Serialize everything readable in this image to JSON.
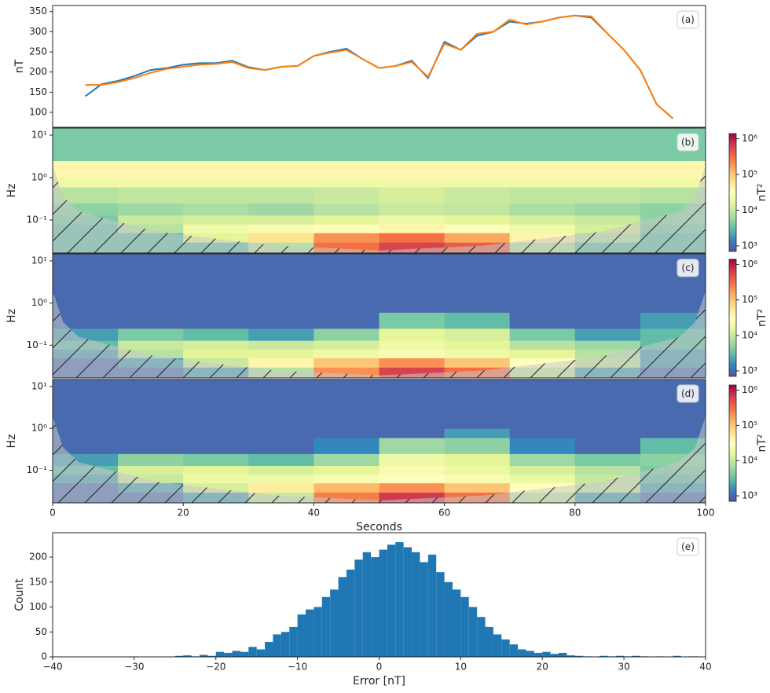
{
  "chart_data": [
    {
      "type": "line",
      "label": "(a)",
      "ylabel": "nT",
      "xlim": [
        0,
        100
      ],
      "ylim": [
        63,
        365
      ],
      "yticks": [
        100,
        150,
        200,
        250,
        300,
        350
      ],
      "x": [
        5,
        7.5,
        10,
        12.5,
        15,
        17.5,
        20,
        22.5,
        25,
        27.5,
        30,
        32.5,
        35,
        37.5,
        40,
        42.5,
        45,
        47.5,
        50,
        52.5,
        55,
        57.5,
        60,
        62.5,
        65,
        67.5,
        70,
        72.5,
        75,
        77.5,
        80,
        82.5,
        85,
        87.5,
        90,
        92.5,
        95
      ],
      "series": [
        {
          "color": "#1f77b4",
          "values": [
            140,
            170,
            178,
            190,
            205,
            210,
            218,
            222,
            222,
            228,
            212,
            205,
            213,
            215,
            240,
            250,
            258,
            232,
            210,
            215,
            228,
            185,
            275,
            255,
            290,
            300,
            325,
            320,
            325,
            335,
            340,
            335,
            295,
            255,
            205,
            120,
            85
          ]
        },
        {
          "color": "#ff7f0e",
          "values": [
            168,
            168,
            175,
            185,
            198,
            208,
            213,
            218,
            220,
            225,
            210,
            205,
            213,
            215,
            240,
            248,
            255,
            232,
            210,
            215,
            225,
            188,
            270,
            255,
            295,
            300,
            330,
            318,
            325,
            335,
            340,
            338,
            295,
            255,
            205,
            120,
            85
          ]
        }
      ]
    },
    {
      "type": "heatmap",
      "label": "(b)",
      "ylabel": "Hz",
      "clabel": "nT²",
      "yscale": "log",
      "xlim": [
        0,
        100
      ],
      "ylim": [
        0.0167,
        14.7
      ],
      "yticks": [
        {
          "value": 0.1,
          "label": "10⁻¹"
        },
        {
          "value": 1,
          "label": "10⁰"
        },
        {
          "value": 10,
          "label": "10¹"
        }
      ],
      "clim": [
        700,
        1400000
      ],
      "cticks": [
        {
          "value": 1000,
          "label": "10³"
        },
        {
          "value": 10000,
          "label": "10⁴"
        },
        {
          "value": 100000,
          "label": "10⁵"
        },
        {
          "value": 1000000,
          "label": "10⁶"
        }
      ],
      "colormap": [
        "#5e4fa2",
        "#3288bd",
        "#66c2a5",
        "#abdda4",
        "#e6f598",
        "#ffffbf",
        "#fee08b",
        "#fdae61",
        "#f46d43",
        "#d53e4f",
        "#9e0142"
      ],
      "x_edges": [
        0,
        10,
        20,
        30,
        40,
        50,
        60,
        70,
        80,
        90,
        100
      ],
      "y_edges": [
        0.0167,
        0.03,
        0.05,
        0.08,
        0.13,
        0.25,
        0.6,
        1,
        2.5,
        14.7
      ],
      "values": [
        [
          3000,
          3000,
          3000,
          8000,
          300000,
          600000,
          400000,
          8000,
          3000,
          3000
        ],
        [
          3000,
          3000,
          15000,
          60000,
          200000,
          300000,
          150000,
          40000,
          8000,
          3000
        ],
        [
          3000,
          8000,
          20000,
          25000,
          30000,
          40000,
          30000,
          20000,
          12000,
          4000
        ],
        [
          4000,
          10000,
          12000,
          12000,
          15000,
          20000,
          15000,
          12000,
          10000,
          5000
        ],
        [
          5000,
          6000,
          7000,
          6000,
          8000,
          10000,
          9000,
          7000,
          6000,
          5000
        ],
        [
          8000,
          9000,
          9000,
          9000,
          10000,
          12000,
          10000,
          9000,
          9000,
          8000
        ],
        [
          20000,
          20000,
          20000,
          20000,
          20000,
          20000,
          20000,
          20000,
          20000,
          20000
        ],
        [
          40000,
          40000,
          40000,
          40000,
          40000,
          40000,
          40000,
          40000,
          40000,
          40000
        ],
        [
          4000,
          4000,
          4000,
          4000,
          4000,
          4000,
          4000,
          4000,
          4000,
          4000
        ]
      ]
    },
    {
      "type": "heatmap",
      "label": "(c)",
      "ylabel": "Hz",
      "clabel": "nT²",
      "yscale": "log",
      "xlim": [
        0,
        100
      ],
      "ylim": [
        0.0167,
        14.7
      ],
      "yticks": [
        {
          "value": 0.1,
          "label": "10⁻¹"
        },
        {
          "value": 1,
          "label": "10⁰"
        },
        {
          "value": 10,
          "label": "10¹"
        }
      ],
      "clim": [
        700,
        1400000
      ],
      "cticks": [
        {
          "value": 1000,
          "label": "10³"
        },
        {
          "value": 10000,
          "label": "10⁴"
        },
        {
          "value": 100000,
          "label": "10⁵"
        },
        {
          "value": 1000000,
          "label": "10⁶"
        }
      ],
      "colormap": [
        "#5e4fa2",
        "#3288bd",
        "#66c2a5",
        "#abdda4",
        "#e6f598",
        "#ffffbf",
        "#fee08b",
        "#fdae61",
        "#f46d43",
        "#d53e4f",
        "#9e0142"
      ],
      "x_edges": [
        0,
        10,
        20,
        30,
        40,
        50,
        60,
        70,
        80,
        90,
        100
      ],
      "y_edges": [
        0.0167,
        0.03,
        0.05,
        0.08,
        0.13,
        0.25,
        0.6,
        1,
        2.5,
        14.7
      ],
      "values": [
        [
          1000,
          1000,
          2000,
          8000,
          200000,
          600000,
          300000,
          10000,
          2000,
          1000
        ],
        [
          1000,
          2000,
          10000,
          40000,
          100000,
          200000,
          100000,
          30000,
          10000,
          2000
        ],
        [
          2000,
          8000,
          15000,
          15000,
          20000,
          25000,
          20000,
          15000,
          8000,
          2000
        ],
        [
          3000,
          10000,
          12000,
          10000,
          12000,
          20000,
          15000,
          8000,
          6000,
          3000
        ],
        [
          2000,
          4000,
          3000,
          2000,
          5000,
          15000,
          12000,
          4000,
          2000,
          3000
        ],
        [
          1000,
          1000,
          1000,
          1000,
          1000,
          4000,
          3000,
          1000,
          1000,
          2000
        ],
        [
          1000,
          1000,
          1000,
          1000,
          1000,
          1000,
          1000,
          1000,
          1000,
          1000
        ],
        [
          1000,
          1000,
          1000,
          1000,
          1000,
          1000,
          1000,
          1000,
          1000,
          1000
        ],
        [
          1000,
          1000,
          1000,
          1000,
          1000,
          1000,
          1000,
          1000,
          1000,
          1000
        ]
      ]
    },
    {
      "type": "heatmap",
      "label": "(d)",
      "ylabel": "Hz",
      "clabel": "nT²",
      "xlabel": "Seconds",
      "yscale": "log",
      "xlim": [
        0,
        100
      ],
      "xticks": [
        0,
        20,
        40,
        60,
        80,
        100
      ],
      "ylim": [
        0.0167,
        14.7
      ],
      "yticks": [
        {
          "value": 0.1,
          "label": "10⁻¹"
        },
        {
          "value": 1,
          "label": "10⁰"
        },
        {
          "value": 10,
          "label": "10¹"
        }
      ],
      "clim": [
        700,
        1400000
      ],
      "cticks": [
        {
          "value": 1000,
          "label": "10³"
        },
        {
          "value": 10000,
          "label": "10⁴"
        },
        {
          "value": 100000,
          "label": "10⁵"
        },
        {
          "value": 1000000,
          "label": "10⁶"
        }
      ],
      "colormap": [
        "#5e4fa2",
        "#3288bd",
        "#66c2a5",
        "#abdda4",
        "#e6f598",
        "#ffffbf",
        "#fee08b",
        "#fdae61",
        "#f46d43",
        "#d53e4f",
        "#9e0142"
      ],
      "x_edges": [
        0,
        10,
        20,
        30,
        40,
        50,
        60,
        70,
        80,
        90,
        100
      ],
      "y_edges": [
        0.0167,
        0.03,
        0.05,
        0.08,
        0.13,
        0.25,
        0.6,
        1,
        2.5,
        14.7
      ],
      "values": [
        [
          1000,
          1000,
          2000,
          10000,
          250000,
          700000,
          300000,
          10000,
          2000,
          1000
        ],
        [
          1000,
          2000,
          12000,
          50000,
          120000,
          200000,
          100000,
          30000,
          10000,
          2000
        ],
        [
          2000,
          10000,
          18000,
          20000,
          25000,
          30000,
          25000,
          18000,
          10000,
          3000
        ],
        [
          3000,
          12000,
          15000,
          12000,
          15000,
          25000,
          18000,
          12000,
          8000,
          4000
        ],
        [
          2000,
          5000,
          4000,
          3000,
          6000,
          20000,
          15000,
          6000,
          4000,
          5000
        ],
        [
          1000,
          1000,
          1000,
          1000,
          1500,
          6000,
          5000,
          1500,
          1000,
          3000
        ],
        [
          1000,
          1000,
          1000,
          1000,
          1000,
          1000,
          2000,
          1000,
          1000,
          1000
        ],
        [
          1000,
          1000,
          1000,
          1000,
          1000,
          1000,
          1000,
          1000,
          1000,
          1000
        ],
        [
          1000,
          1000,
          1000,
          1000,
          1000,
          1000,
          1000,
          1000,
          1000,
          1000
        ]
      ]
    },
    {
      "type": "histogram",
      "label": "(e)",
      "ylabel": "Count",
      "xlabel": "Error [nT]",
      "color": "#1f77b4",
      "xlim": [
        -40,
        40
      ],
      "ylim": [
        0,
        249
      ],
      "xticks": [
        {
          "value": -40,
          "label": "−40"
        },
        {
          "value": -30,
          "label": "−30"
        },
        {
          "value": -20,
          "label": "−20"
        },
        {
          "value": -10,
          "label": "−10"
        },
        0,
        10,
        20,
        30,
        40
      ],
      "yticks": [
        0,
        50,
        100,
        150,
        200
      ],
      "bins": [
        -25,
        -24,
        -23,
        -22,
        -21,
        -20,
        -19,
        -18,
        -17,
        -16,
        -15,
        -14,
        -13,
        -12,
        -11,
        -10,
        -9,
        -8,
        -7,
        -6,
        -5,
        -4,
        -3,
        -2,
        -1,
        0,
        1,
        2,
        3,
        4,
        5,
        6,
        7,
        8,
        9,
        10,
        11,
        12,
        13,
        14,
        15,
        16,
        17,
        18,
        19,
        20,
        21,
        22,
        23,
        24,
        25,
        26,
        27,
        28,
        29,
        30,
        31,
        32,
        33,
        34,
        35,
        36,
        37,
        38,
        39
      ],
      "values": [
        2,
        3,
        1,
        4,
        2,
        10,
        8,
        12,
        10,
        20,
        15,
        30,
        45,
        50,
        60,
        85,
        95,
        100,
        120,
        135,
        160,
        175,
        195,
        210,
        200,
        215,
        225,
        230,
        220,
        210,
        190,
        205,
        170,
        150,
        135,
        120,
        100,
        80,
        60,
        45,
        35,
        25,
        15,
        12,
        8,
        10,
        6,
        8,
        3,
        2,
        1,
        0,
        2,
        1,
        2,
        1,
        2,
        1,
        0,
        1,
        0,
        2,
        0,
        1
      ]
    }
  ]
}
